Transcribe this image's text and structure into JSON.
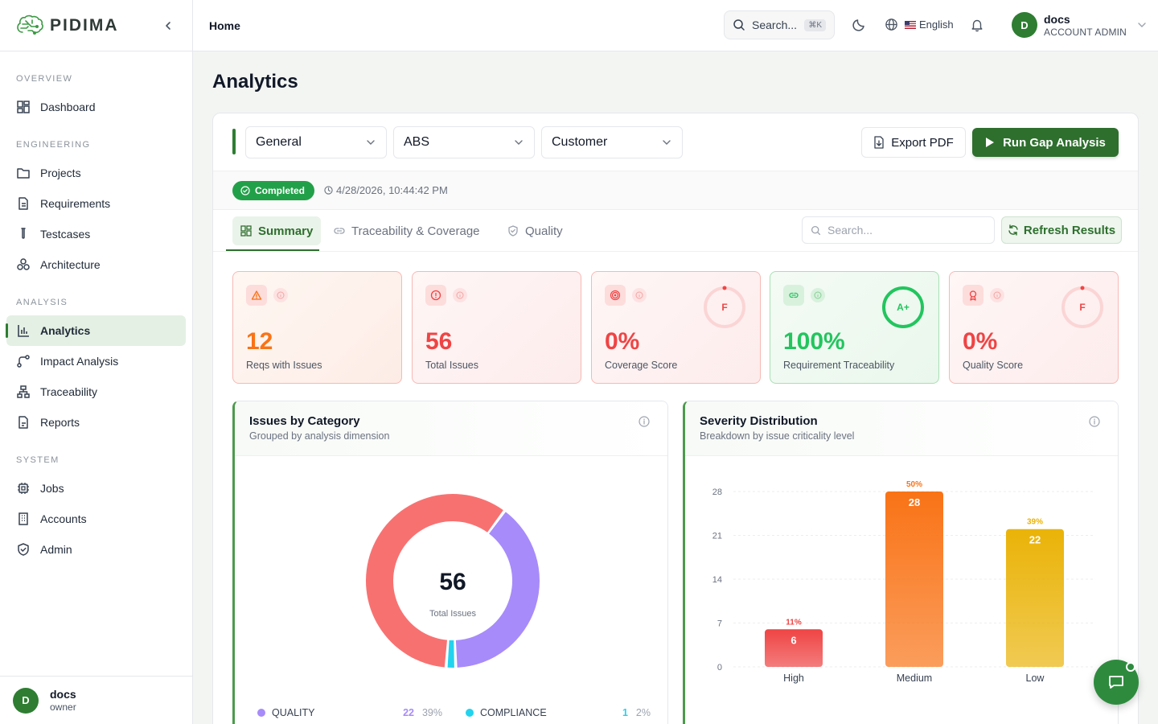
{
  "brand": {
    "name": "PIDIMA"
  },
  "header": {
    "breadcrumb": "Home",
    "search_placeholder": "Search...",
    "search_shortcut": "⌘K",
    "language": "English",
    "user_name": "docs",
    "user_role": "ACCOUNT ADMIN",
    "user_initial": "D"
  },
  "sidebar": {
    "sections": [
      {
        "title": "OVERVIEW",
        "items": [
          {
            "label": "Dashboard",
            "icon": "dashboard-icon"
          }
        ]
      },
      {
        "title": "ENGINEERING",
        "items": [
          {
            "label": "Projects",
            "icon": "projects-icon"
          },
          {
            "label": "Requirements",
            "icon": "requirements-icon"
          },
          {
            "label": "Testcases",
            "icon": "testcases-icon"
          },
          {
            "label": "Architecture",
            "icon": "architecture-icon"
          }
        ]
      },
      {
        "title": "ANALYSIS",
        "items": [
          {
            "label": "Analytics",
            "icon": "bar-chart-icon",
            "active": true
          },
          {
            "label": "Impact Analysis",
            "icon": "impact-icon"
          },
          {
            "label": "Traceability",
            "icon": "traceability-icon"
          },
          {
            "label": "Reports",
            "icon": "reports-icon"
          }
        ]
      },
      {
        "title": "SYSTEM",
        "items": [
          {
            "label": "Jobs",
            "icon": "cpu-icon"
          },
          {
            "label": "Accounts",
            "icon": "building-icon"
          },
          {
            "label": "Admin",
            "icon": "shield-icon"
          }
        ]
      }
    ],
    "user": {
      "name": "docs",
      "role": "owner",
      "initial": "D"
    }
  },
  "page": {
    "title": "Analytics"
  },
  "toolbar": {
    "selects": [
      "General",
      "ABS",
      "Customer"
    ],
    "export_label": "Export PDF",
    "run_label": "Run Gap Analysis"
  },
  "status": {
    "badge": "Completed",
    "timestamp": "4/28/2026, 10:44:42 PM"
  },
  "tabs": {
    "items": [
      {
        "label": "Summary",
        "active": true
      },
      {
        "label": "Traceability & Coverage"
      },
      {
        "label": "Quality"
      }
    ],
    "search_placeholder": "Search...",
    "refresh_label": "Refresh Results"
  },
  "metrics": [
    {
      "value": "12",
      "label": "Reqs with Issues",
      "icon": "warning-icon",
      "color": "#f97316"
    },
    {
      "value": "56",
      "label": "Total Issues",
      "icon": "alert-circle-icon",
      "color": "#ef4444"
    },
    {
      "value": "0%",
      "label": "Coverage Score",
      "icon": "target-icon",
      "color": "#ef4444",
      "grade": "F",
      "progress": 0
    },
    {
      "value": "100%",
      "label": "Requirement Traceability",
      "icon": "link-icon",
      "color": "#22c55e",
      "grade": "A+",
      "progress": 1
    },
    {
      "value": "0%",
      "label": "Quality Score",
      "icon": "award-icon",
      "color": "#ef4444",
      "grade": "F",
      "progress": 0
    }
  ],
  "issues_chart": {
    "title": "Issues by Category",
    "subtitle": "Grouped by analysis dimension",
    "center_value": "56",
    "center_label": "Total Issues",
    "legend": [
      {
        "name": "QUALITY",
        "count": "22",
        "pct": "39%",
        "color": "#a78bfa"
      },
      {
        "name": "COMPLIANCE",
        "count": "1",
        "pct": "2%",
        "color": "#22d3ee"
      }
    ]
  },
  "severity_chart": {
    "title": "Severity Distribution",
    "subtitle": "Breakdown by issue criticality level"
  },
  "chart_data": [
    {
      "type": "pie",
      "title": "Issues by Category",
      "labels": [
        "QUALITY",
        "COMPLIANCE",
        ""
      ],
      "values": [
        22,
        1,
        33
      ],
      "colors": [
        "#a78bfa",
        "#22d3ee",
        "#f87171"
      ]
    },
    {
      "type": "bar",
      "title": "Severity Distribution",
      "categories": [
        "High",
        "Medium",
        "Low"
      ],
      "values": [
        6,
        28,
        22
      ],
      "percent_labels": [
        "11%",
        "50%",
        "39%"
      ],
      "yticks": [
        0,
        7,
        14,
        21,
        28
      ],
      "ylim": [
        0,
        28
      ],
      "colors": [
        "#ef4444",
        "#f97316",
        "#eab308"
      ]
    }
  ]
}
